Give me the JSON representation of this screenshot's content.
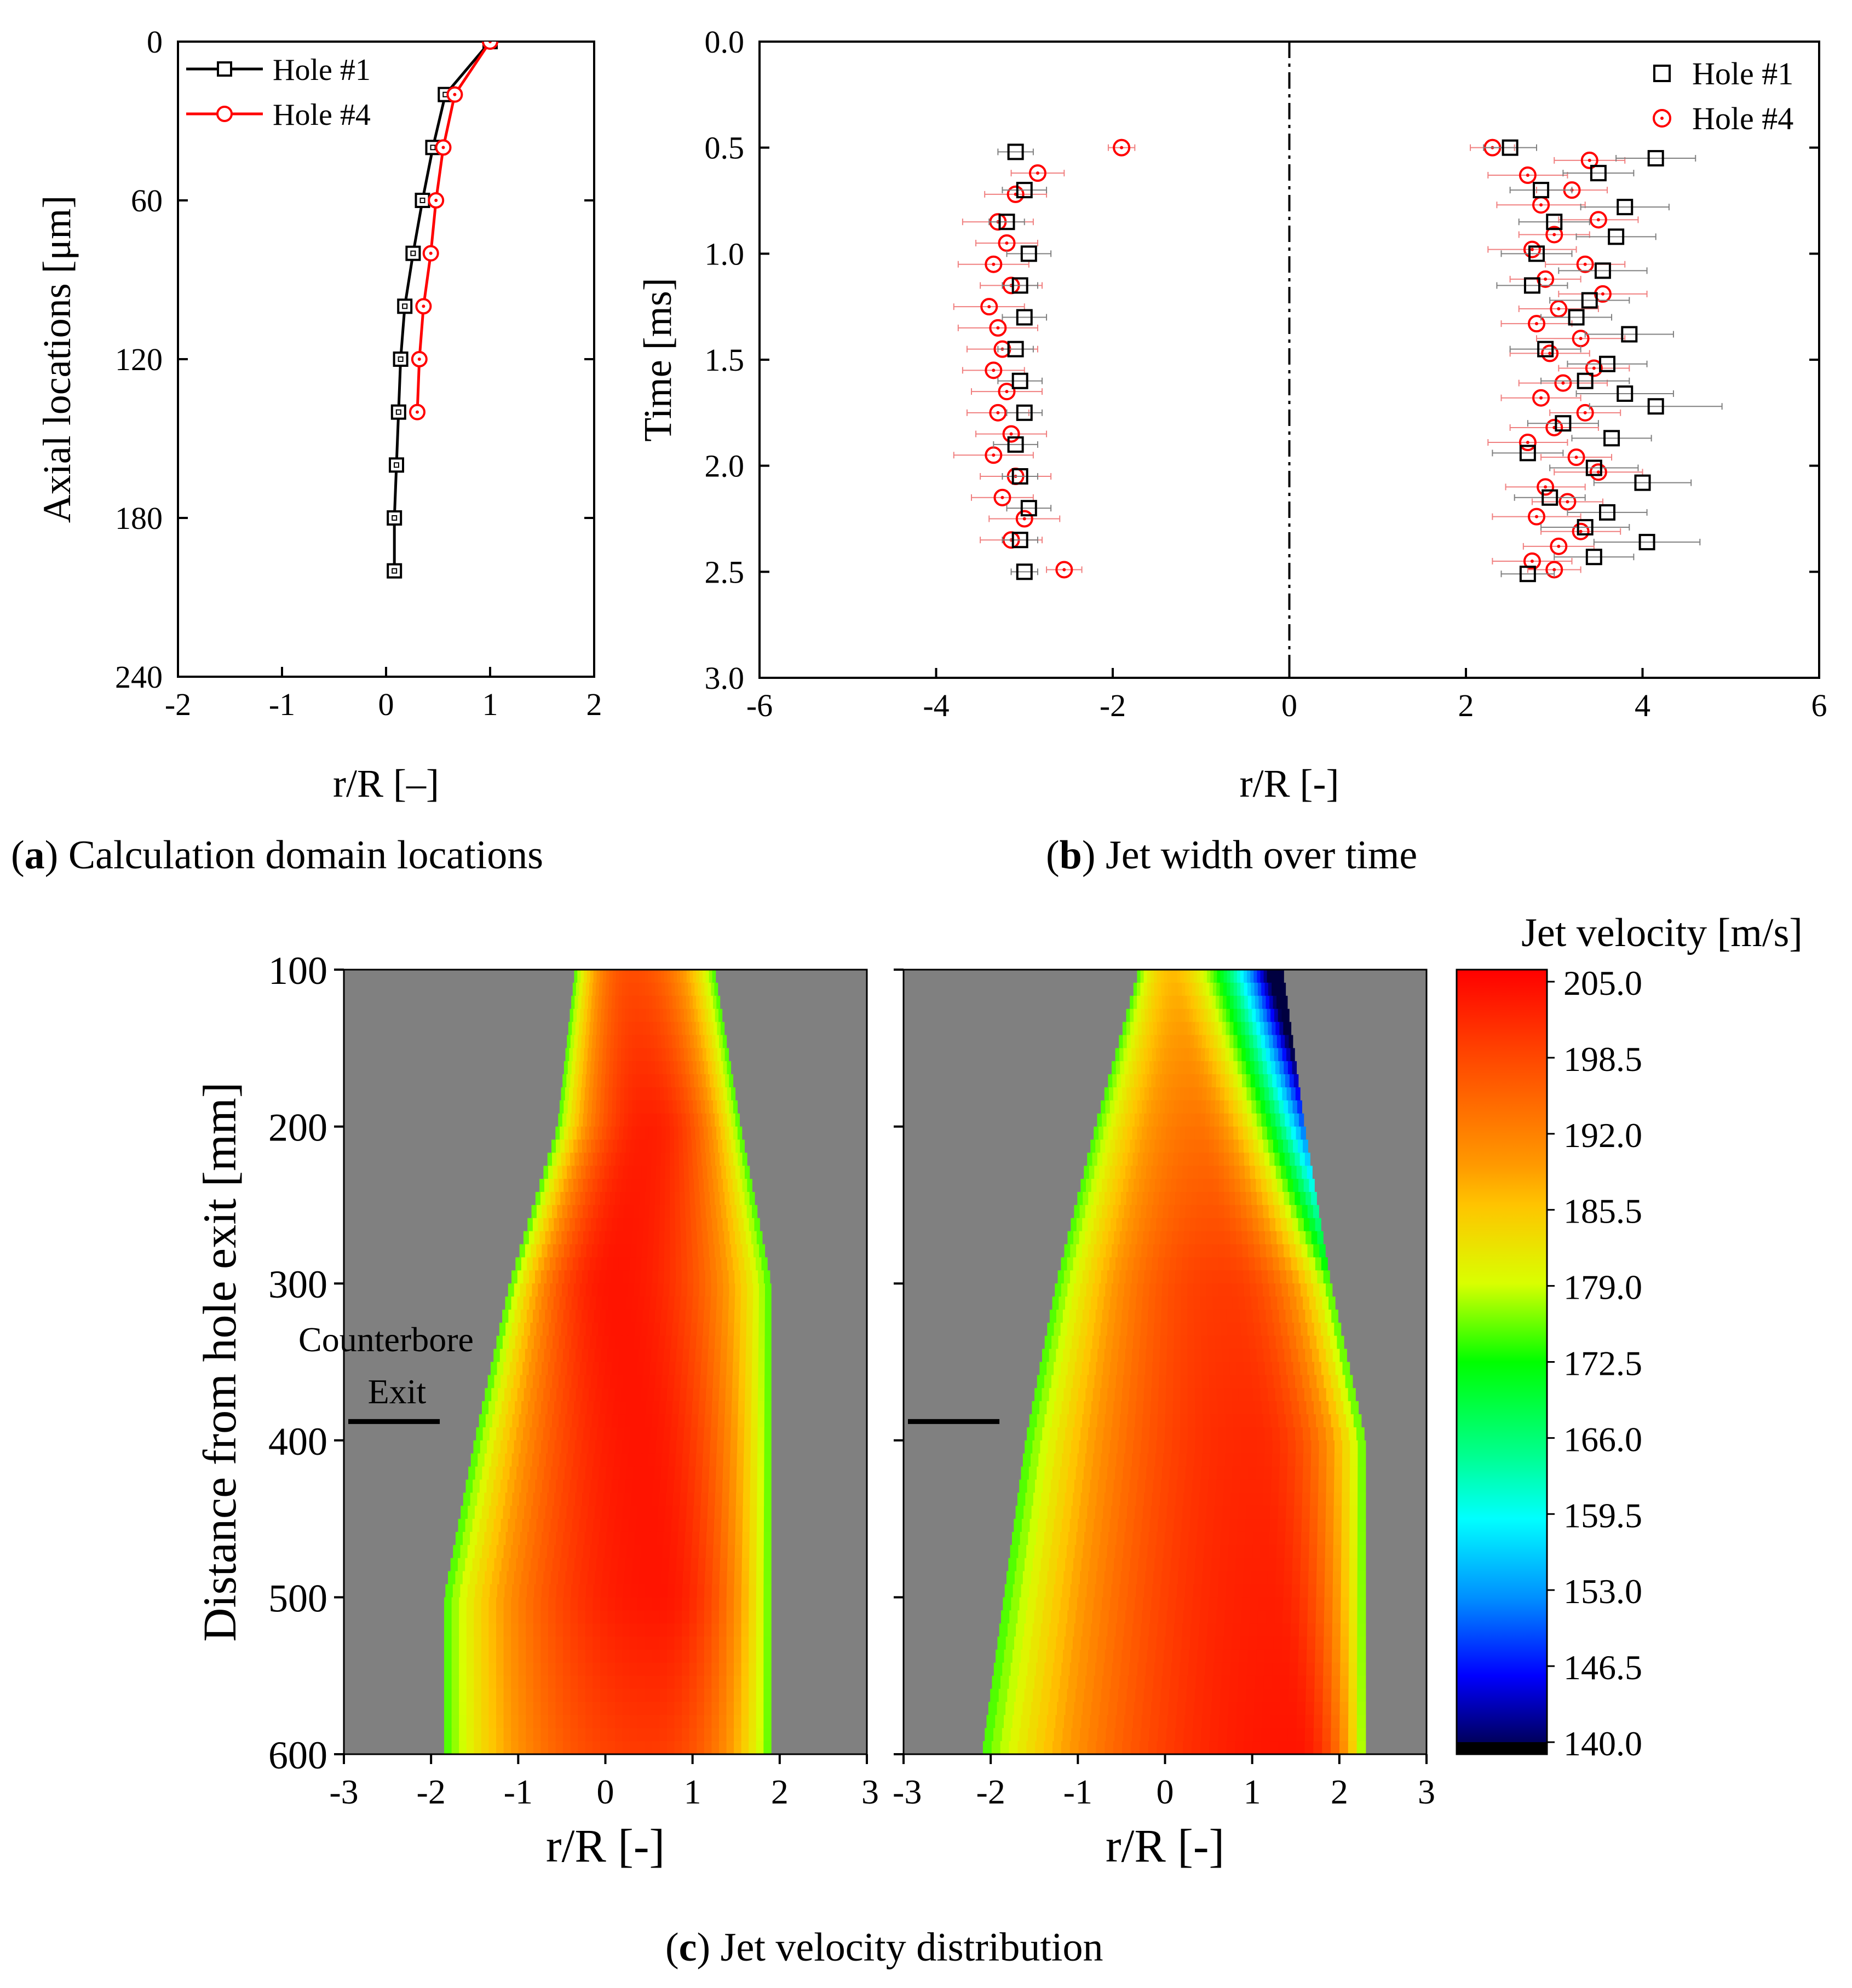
{
  "captions": {
    "a": {
      "letter": "a",
      "text": "Calculation domain locations"
    },
    "b": {
      "letter": "b",
      "text": "Jet width over time"
    },
    "c": {
      "letter": "c",
      "text": "Jet velocity distribution"
    }
  },
  "colors": {
    "hole1": "#000000",
    "hole4": "#ff0000",
    "hole4_errorbar": "#f08080",
    "hole1_errorbar": "#808080",
    "contour_background": "#808080"
  },
  "chart_data": [
    {
      "id": "a",
      "type": "line",
      "xlabel": "r/R [–]",
      "ylabel": "Axial locations [μm]",
      "xlim": [
        -2,
        2
      ],
      "ylim": [
        240,
        0
      ],
      "y_inverted": true,
      "xticks": [
        -2,
        -1,
        0,
        1,
        2
      ],
      "yticks": [
        0,
        60,
        120,
        180,
        240
      ],
      "legend": "top-left",
      "series": [
        {
          "name": "Hole #1",
          "marker": "square",
          "x": [
            1.0,
            0.57,
            0.45,
            0.35,
            0.26,
            0.18,
            0.14,
            0.12,
            0.1,
            0.08,
            0.08
          ],
          "y": [
            0,
            20,
            40,
            60,
            80,
            100,
            120,
            140,
            160,
            180,
            200
          ]
        },
        {
          "name": "Hole #4",
          "marker": "circle",
          "x": [
            1.0,
            0.66,
            0.55,
            0.48,
            0.43,
            0.36,
            0.32,
            0.3
          ],
          "y": [
            0,
            20,
            40,
            60,
            80,
            100,
            120,
            140
          ]
        }
      ]
    },
    {
      "id": "b",
      "type": "scatter",
      "xlabel": "r/R [-]",
      "ylabel": "Time [ms]",
      "xlim": [
        -6,
        6
      ],
      "ylim": [
        3.0,
        0.0
      ],
      "y_inverted": true,
      "xticks": [
        -6,
        -4,
        -2,
        0,
        2,
        4,
        6
      ],
      "yticks": [
        0.0,
        0.5,
        1.0,
        1.5,
        2.0,
        2.5,
        3.0
      ],
      "centerline_x": 0,
      "legend": "top-right",
      "series": [
        {
          "name": "Hole #1",
          "marker": "square",
          "left": {
            "t": [
              0.52,
              0.7,
              0.85,
              1.0,
              1.15,
              1.3,
              1.45,
              1.6,
              1.75,
              1.9,
              2.05,
              2.2,
              2.35,
              2.5
            ],
            "x": [
              -3.1,
              -3.0,
              -3.2,
              -2.95,
              -3.05,
              -3.0,
              -3.1,
              -3.05,
              -3.0,
              -3.1,
              -3.05,
              -2.95,
              -3.05,
              -3.0
            ],
            "err": [
              0.2,
              0.25,
              0.2,
              0.25,
              0.2,
              0.25,
              0.2,
              0.25,
              0.2,
              0.25,
              0.2,
              0.25,
              0.2,
              0.15
            ]
          },
          "right": {
            "t": [
              0.5,
              0.55,
              0.62,
              0.7,
              0.78,
              0.85,
              0.92,
              1.0,
              1.08,
              1.15,
              1.22,
              1.3,
              1.38,
              1.45,
              1.52,
              1.6,
              1.66,
              1.72,
              1.8,
              1.87,
              1.94,
              2.01,
              2.08,
              2.15,
              2.22,
              2.29,
              2.36,
              2.43,
              2.51
            ],
            "x": [
              2.5,
              4.15,
              3.5,
              2.85,
              3.8,
              3.0,
              3.7,
              2.8,
              3.55,
              2.75,
              3.4,
              3.25,
              3.85,
              2.9,
              3.6,
              3.35,
              3.8,
              4.15,
              3.1,
              3.65,
              2.7,
              3.45,
              4.0,
              2.95,
              3.6,
              3.35,
              4.05,
              3.45,
              2.7
            ],
            "err": [
              0.3,
              0.45,
              0.4,
              0.35,
              0.5,
              0.4,
              0.45,
              0.4,
              0.5,
              0.4,
              0.45,
              0.4,
              0.5,
              0.4,
              0.45,
              0.5,
              0.55,
              0.75,
              0.4,
              0.45,
              0.4,
              0.5,
              0.55,
              0.4,
              0.45,
              0.5,
              0.6,
              0.45,
              0.3
            ]
          }
        },
        {
          "name": "Hole #4",
          "marker": "circle",
          "left": {
            "t": [
              0.5,
              0.62,
              0.72,
              0.85,
              0.95,
              1.05,
              1.15,
              1.25,
              1.35,
              1.45,
              1.55,
              1.65,
              1.75,
              1.85,
              1.95,
              2.05,
              2.15,
              2.25,
              2.35,
              2.49
            ],
            "x": [
              -1.9,
              -2.85,
              -3.1,
              -3.3,
              -3.2,
              -3.35,
              -3.15,
              -3.4,
              -3.3,
              -3.25,
              -3.35,
              -3.2,
              -3.3,
              -3.15,
              -3.35,
              -3.1,
              -3.25,
              -3.0,
              -3.15,
              -2.55
            ],
            "err": [
              0.15,
              0.3,
              0.35,
              0.4,
              0.35,
              0.4,
              0.35,
              0.4,
              0.45,
              0.4,
              0.35,
              0.4,
              0.35,
              0.4,
              0.45,
              0.4,
              0.35,
              0.4,
              0.35,
              0.2
            ]
          },
          "right": {
            "t": [
              0.5,
              0.56,
              0.63,
              0.7,
              0.77,
              0.84,
              0.91,
              0.98,
              1.05,
              1.12,
              1.19,
              1.26,
              1.33,
              1.4,
              1.47,
              1.54,
              1.61,
              1.68,
              1.75,
              1.82,
              1.89,
              1.96,
              2.03,
              2.1,
              2.17,
              2.24,
              2.31,
              2.38,
              2.45,
              2.49
            ],
            "x": [
              2.3,
              3.4,
              2.7,
              3.2,
              2.85,
              3.5,
              3.0,
              2.75,
              3.35,
              2.9,
              3.55,
              3.05,
              2.8,
              3.3,
              2.95,
              3.45,
              3.1,
              2.85,
              3.35,
              3.0,
              2.7,
              3.25,
              3.5,
              2.9,
              3.15,
              2.8,
              3.3,
              3.05,
              2.75,
              3.0
            ],
            "err": [
              0.25,
              0.4,
              0.45,
              0.4,
              0.5,
              0.45,
              0.4,
              0.5,
              0.45,
              0.4,
              0.5,
              0.45,
              0.4,
              0.5,
              0.45,
              0.4,
              0.5,
              0.45,
              0.4,
              0.5,
              0.45,
              0.4,
              0.5,
              0.45,
              0.4,
              0.5,
              0.45,
              0.4,
              0.45,
              0.3
            ]
          }
        }
      ]
    },
    {
      "id": "c",
      "type": "heatmap",
      "ylabel": "Distance from hole exit [mm]",
      "colorbar_title": "Jet velocity [m/s]",
      "clim": [
        140.0,
        205.0
      ],
      "colorbar_ticks": [
        "205.0",
        "198.5",
        "192.0",
        "185.5",
        "179.0",
        "172.5",
        "166.0",
        "159.5",
        "153.0",
        "146.5",
        "140.0"
      ],
      "yticks": [
        100,
        200,
        300,
        400,
        500,
        600
      ],
      "ylim": [
        600,
        100
      ],
      "panels": [
        {
          "xlabel": "r/R [-]",
          "xlim": [
            -3,
            3
          ],
          "xticks": [
            -3,
            -2,
            -1,
            0,
            1,
            2,
            3
          ],
          "annotation": {
            "lines": [
              "Counterbore",
              "Exit"
            ],
            "y": 388
          },
          "outline": {
            "left": [
              [
                -0.35,
                100
              ],
              [
                -0.55,
                200
              ],
              [
                -1.1,
                300
              ],
              [
                -1.5,
                400
              ],
              [
                -1.85,
                500
              ],
              [
                -1.85,
                600
              ]
            ],
            "right": [
              [
                1.25,
                100
              ],
              [
                1.55,
                200
              ],
              [
                1.9,
                300
              ],
              [
                1.9,
                400
              ],
              [
                1.9,
                500
              ],
              [
                1.9,
                600
              ]
            ]
          },
          "core_x": [
            0.3,
            0.5,
            0.1,
            0.4,
            0.6,
            0.5
          ],
          "core_y": [
            100,
            200,
            300,
            400,
            500,
            600
          ],
          "peak_velocity": [
            197,
            202,
            203,
            203,
            203,
            199
          ]
        },
        {
          "xlabel": "r/R [-]",
          "xlim": [
            -3,
            3
          ],
          "xticks": [
            -3,
            -2,
            -1,
            0,
            1,
            2,
            3
          ],
          "annotation": {
            "lines": [],
            "y": 388
          },
          "outline": {
            "left": [
              [
                -0.3,
                100
              ],
              [
                -0.8,
                200
              ],
              [
                -1.25,
                300
              ],
              [
                -1.6,
                400
              ],
              [
                -1.85,
                500
              ],
              [
                -2.1,
                600
              ]
            ],
            "right": [
              [
                1.35,
                100
              ],
              [
                1.6,
                200
              ],
              [
                1.9,
                300
              ],
              [
                2.3,
                400
              ],
              [
                2.3,
                500
              ],
              [
                2.3,
                600
              ]
            ]
          },
          "core_x": [
            0.1,
            0.4,
            0.7,
            1.0,
            1.2,
            1.5
          ],
          "core_y": [
            100,
            200,
            300,
            400,
            500,
            600
          ],
          "peak_velocity": [
            186,
            193,
            199,
            201,
            202,
            203
          ]
        }
      ]
    }
  ]
}
